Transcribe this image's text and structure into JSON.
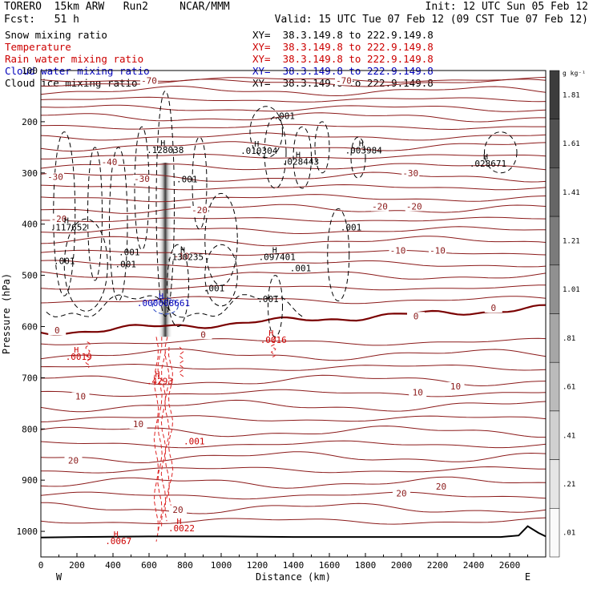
{
  "chart_data": {
    "type": "cross-section",
    "header": {
      "left_line1": "TORERO  15km ARW   Run2     NCAR/MMM",
      "left_line2": "Fcst:   51 h",
      "init": "Init: 12 UTC Sun 05 Feb 12",
      "valid": "Valid: 15 UTC Tue 07 Feb 12 (09 CST Tue 07 Feb 12)"
    },
    "fields": [
      {
        "name": "Snow mixing ratio",
        "xy": "XY=  38.3.149.8 to 222.9.149.8",
        "color": "#000000"
      },
      {
        "name": "Temperature",
        "xy": "XY=  38.3.149.8 to 222.9.149.8",
        "color": "#cc0000"
      },
      {
        "name": "Rain water mixing ratio",
        "xy": "XY=  38.3.149.8 to 222.9.149.8",
        "color": "#cc0000"
      },
      {
        "name": "Cloud water mixing ratio",
        "xy": "XY=  38.3.149.8 to 222.9.149.8",
        "color": "#0000bb"
      },
      {
        "name": "Cloud ice mixing ratio",
        "xy": "XY=  38.3.149.8 to 222.9.149.8",
        "color": "#000000"
      }
    ],
    "x_axis": {
      "label": "Distance (km)",
      "range": [
        0,
        2800
      ],
      "ticks": [
        0,
        200,
        400,
        600,
        800,
        1000,
        1200,
        1400,
        1600,
        1800,
        2000,
        2200,
        2400,
        2600
      ],
      "left_end": "W",
      "right_end": "E"
    },
    "y_axis": {
      "label": "Pressure (hPa)",
      "range": [
        100,
        1050
      ],
      "ticks": [
        200,
        300,
        400,
        500,
        600,
        700,
        800,
        900,
        1000
      ],
      "top_tick": "100"
    },
    "colorbar": {
      "unit": "g kg⁻¹",
      "labels": [
        "1.81",
        "1.61",
        "1.41",
        "1.21",
        "1.01",
        ".81",
        ".61",
        ".41",
        ".21",
        ".01"
      ]
    },
    "temperature_labels": [
      {
        "text": "-70",
        "x": 600,
        "p": 124
      },
      {
        "text": "-70",
        "x": 1680,
        "p": 124
      },
      {
        "text": "-40",
        "x": 380,
        "p": 283
      },
      {
        "text": "-30",
        "x": 80,
        "p": 312
      },
      {
        "text": "-30",
        "x": 560,
        "p": 316
      },
      {
        "text": "-30",
        "x": 2050,
        "p": 305
      },
      {
        "text": "-20",
        "x": 100,
        "p": 394
      },
      {
        "text": "-20",
        "x": 880,
        "p": 377
      },
      {
        "text": "-20",
        "x": 1880,
        "p": 370
      },
      {
        "text": "-20",
        "x": 2070,
        "p": 370
      },
      {
        "text": "-10",
        "x": 780,
        "p": 467
      },
      {
        "text": "-10",
        "x": 1980,
        "p": 456
      },
      {
        "text": "-10",
        "x": 2200,
        "p": 456
      },
      {
        "text": "0",
        "x": 90,
        "p": 612
      },
      {
        "text": "0",
        "x": 900,
        "p": 620
      },
      {
        "text": "0",
        "x": 2080,
        "p": 584
      },
      {
        "text": "0",
        "x": 2510,
        "p": 568
      },
      {
        "text": "10",
        "x": 220,
        "p": 741
      },
      {
        "text": "10",
        "x": 2090,
        "p": 733
      },
      {
        "text": "10",
        "x": 2300,
        "p": 721
      },
      {
        "text": "10",
        "x": 540,
        "p": 795
      },
      {
        "text": "20",
        "x": 180,
        "p": 866
      },
      {
        "text": "20",
        "x": 760,
        "p": 962
      },
      {
        "text": "20",
        "x": 2000,
        "p": 930
      },
      {
        "text": "20",
        "x": 2220,
        "p": 917
      }
    ],
    "maxima": [
      {
        "text": ".128038",
        "x": 690,
        "p": 261,
        "color": "#000000"
      },
      {
        "text": ".010304",
        "x": 1210,
        "p": 263,
        "color": "#000000"
      },
      {
        "text": ".028443",
        "x": 1440,
        "p": 284,
        "color": "#000000"
      },
      {
        "text": ".003984",
        "x": 1790,
        "p": 262,
        "color": "#000000"
      },
      {
        "text": ".028671",
        "x": 2480,
        "p": 288,
        "color": "#000000"
      },
      {
        "text": ".117652",
        "x": 155,
        "p": 412,
        "color": "#000000"
      },
      {
        "text": ".130235",
        "x": 800,
        "p": 470,
        "color": "#000000"
      },
      {
        "text": ".097401",
        "x": 1310,
        "p": 470,
        "color": "#000000"
      },
      {
        "text": ".000008661",
        "x": 680,
        "p": 560,
        "color": "#0000bb"
      },
      {
        "text": ".0016",
        "x": 1290,
        "p": 632,
        "color": "#cc0000"
      },
      {
        "text": ".0019",
        "x": 210,
        "p": 665,
        "color": "#cc0000"
      },
      {
        "text": ".4293",
        "x": 660,
        "p": 713,
        "color": "#cc0000"
      },
      {
        "text": ".0067",
        "x": 430,
        "p": 1025,
        "color": "#cc0000"
      },
      {
        "text": ".0022",
        "x": 780,
        "p": 1000,
        "color": "#cc0000"
      }
    ],
    "contour_labels": [
      {
        "text": ".001",
        "x": 1350,
        "p": 195,
        "color": "#000000"
      },
      {
        "text": ".001",
        "x": 810,
        "p": 318,
        "color": "#000000"
      },
      {
        "text": ".001",
        "x": 1720,
        "p": 412,
        "color": "#000000"
      },
      {
        "text": ".001",
        "x": 130,
        "p": 478,
        "color": "#000000"
      },
      {
        "text": ".001",
        "x": 490,
        "p": 461,
        "color": "#000000"
      },
      {
        "text": ".001",
        "x": 470,
        "p": 484,
        "color": "#000000"
      },
      {
        "text": ".001",
        "x": 1440,
        "p": 492,
        "color": "#000000"
      },
      {
        "text": ".001",
        "x": 960,
        "p": 531,
        "color": "#000000"
      },
      {
        "text": ".001",
        "x": 1260,
        "p": 552,
        "color": "#000000"
      },
      {
        "text": ".001",
        "x": 850,
        "p": 830,
        "color": "#cc0000"
      }
    ],
    "peak_marker": "H",
    "snow_streak": {
      "x": 690,
      "p_top": 280,
      "p_bottom": 620
    }
  }
}
